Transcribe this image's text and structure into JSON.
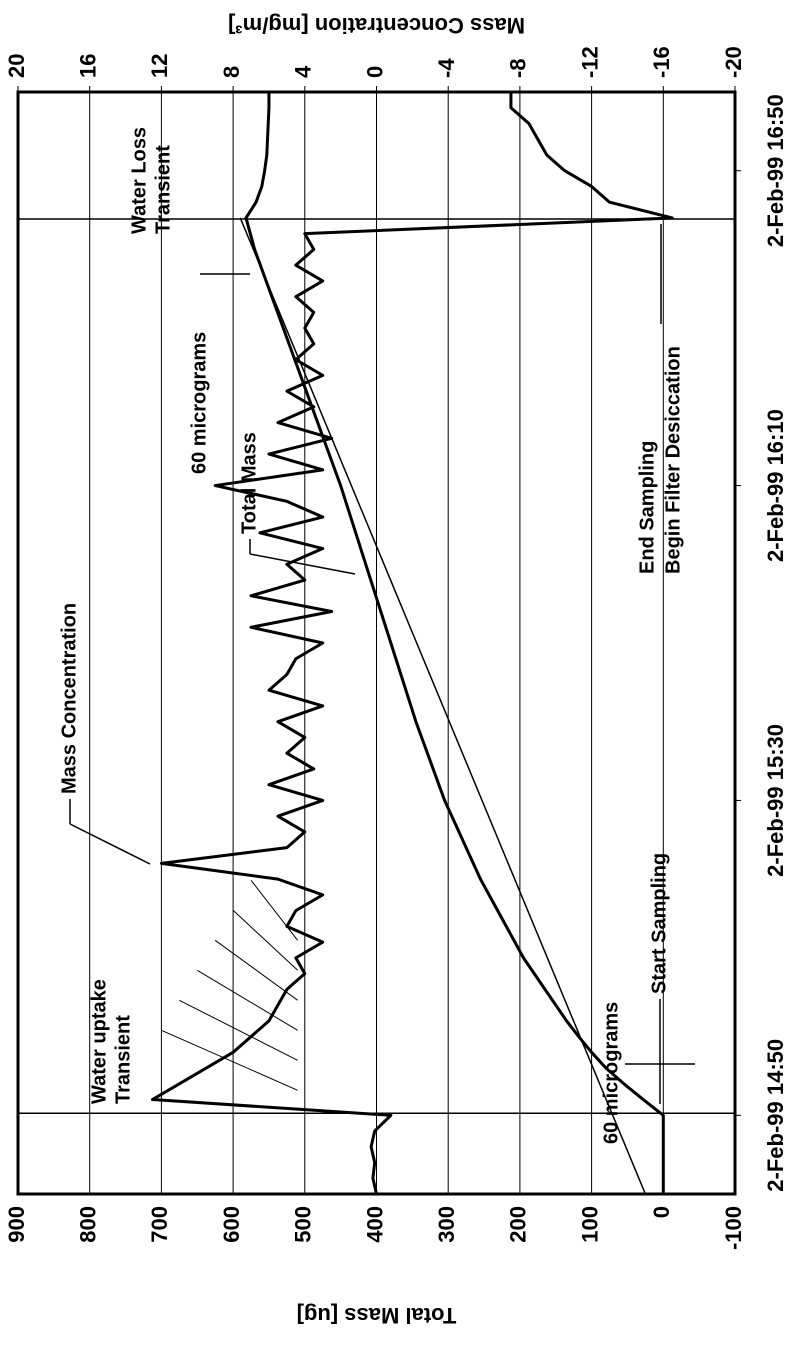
{
  "chart_data": {
    "type": "line",
    "ylabel": "Total Mass [ug]",
    "y2label": "Mass Concentration [mg/m³]",
    "x": [
      -10,
      -8,
      -6,
      -4,
      -2,
      0,
      2,
      4,
      6,
      8,
      10,
      12,
      14,
      16,
      18,
      20,
      22,
      24,
      26,
      28,
      30,
      32,
      34,
      36,
      38,
      40,
      42,
      44,
      46,
      48,
      50,
      52,
      54,
      56,
      58,
      60,
      62,
      64,
      66,
      68,
      70,
      72,
      74,
      76,
      78,
      80,
      82,
      84,
      86,
      88,
      90,
      92,
      94,
      96,
      98,
      100,
      102,
      104,
      106,
      108,
      110,
      112,
      114,
      116,
      118,
      120,
      122,
      124,
      126,
      128,
      130
    ],
    "xlim": [
      -10,
      130
    ],
    "xticks": [
      {
        "value": 0,
        "label": "2-Feb-99 14:50"
      },
      {
        "value": 40,
        "label": "2-Feb-99 15:30"
      },
      {
        "value": 80,
        "label": "2-Feb-99 16:10"
      },
      {
        "value": 120,
        "label": "2-Feb-99 16:50"
      }
    ],
    "ylim": [
      -100,
      900
    ],
    "yticks": [
      -100,
      0,
      100,
      200,
      300,
      400,
      500,
      600,
      700,
      800,
      900
    ],
    "y2lim": [
      -20,
      20
    ],
    "y2ticks": [
      -20,
      -16,
      -12,
      -8,
      -4,
      0,
      4,
      8,
      12,
      16,
      20
    ],
    "grid": true,
    "series": [
      {
        "name": "Total Mass",
        "color": "#000000",
        "values": [
          0,
          0,
          0,
          0,
          0,
          0,
          28,
          55,
          80,
          100,
          118,
          135,
          150,
          165,
          180,
          195,
          207,
          219,
          231,
          243,
          255,
          265,
          275,
          285,
          295,
          305,
          313,
          321,
          329,
          337,
          345,
          352,
          359,
          366,
          373,
          380,
          387,
          394,
          401,
          408,
          415,
          422,
          429,
          436,
          443,
          450,
          458,
          466,
          474,
          482,
          490,
          498,
          506,
          514,
          522,
          530,
          538,
          546,
          554,
          562,
          570,
          576,
          582,
          568,
          560,
          556,
          553,
          552,
          551,
          550,
          550
        ]
      },
      {
        "name": "Mass Concentration",
        "color": "#000000",
        "axis": "y2",
        "values": [
          0,
          0.2,
          0.1,
          0.3,
          0.1,
          -0.8,
          12.5,
          11,
          9.5,
          8,
          7,
          6,
          5.5,
          5,
          4,
          4.5,
          3,
          5,
          4.5,
          3,
          5.5,
          12,
          5,
          4,
          5.5,
          3,
          6,
          3.5,
          5,
          4,
          5.5,
          3,
          6,
          5,
          4.5,
          3,
          7,
          2.5,
          7,
          4,
          5,
          3,
          6.5,
          3,
          5,
          9,
          3,
          6,
          2.5,
          5.5,
          3.5,
          5,
          3,
          4.5,
          3.5,
          4,
          3.5,
          4.5,
          3,
          4.5,
          3.5,
          4,
          -16.5,
          -13,
          -12,
          -10.5,
          -9.5,
          -9,
          -8.5,
          -7.5,
          -7.5
        ]
      },
      {
        "color": "#000000",
        "x": [
          -10,
          114
        ],
        "values": [
          25,
          590
        ]
      }
    ],
    "annotations": [
      "Mass Concentration",
      "Total Mass",
      "Water uptake",
      "Transient",
      "Water Loss",
      "Transient",
      "60 micrograms",
      "60 micrograms",
      "Start Sampling",
      "End Sampling",
      "Begin Filter Desiccation"
    ]
  }
}
